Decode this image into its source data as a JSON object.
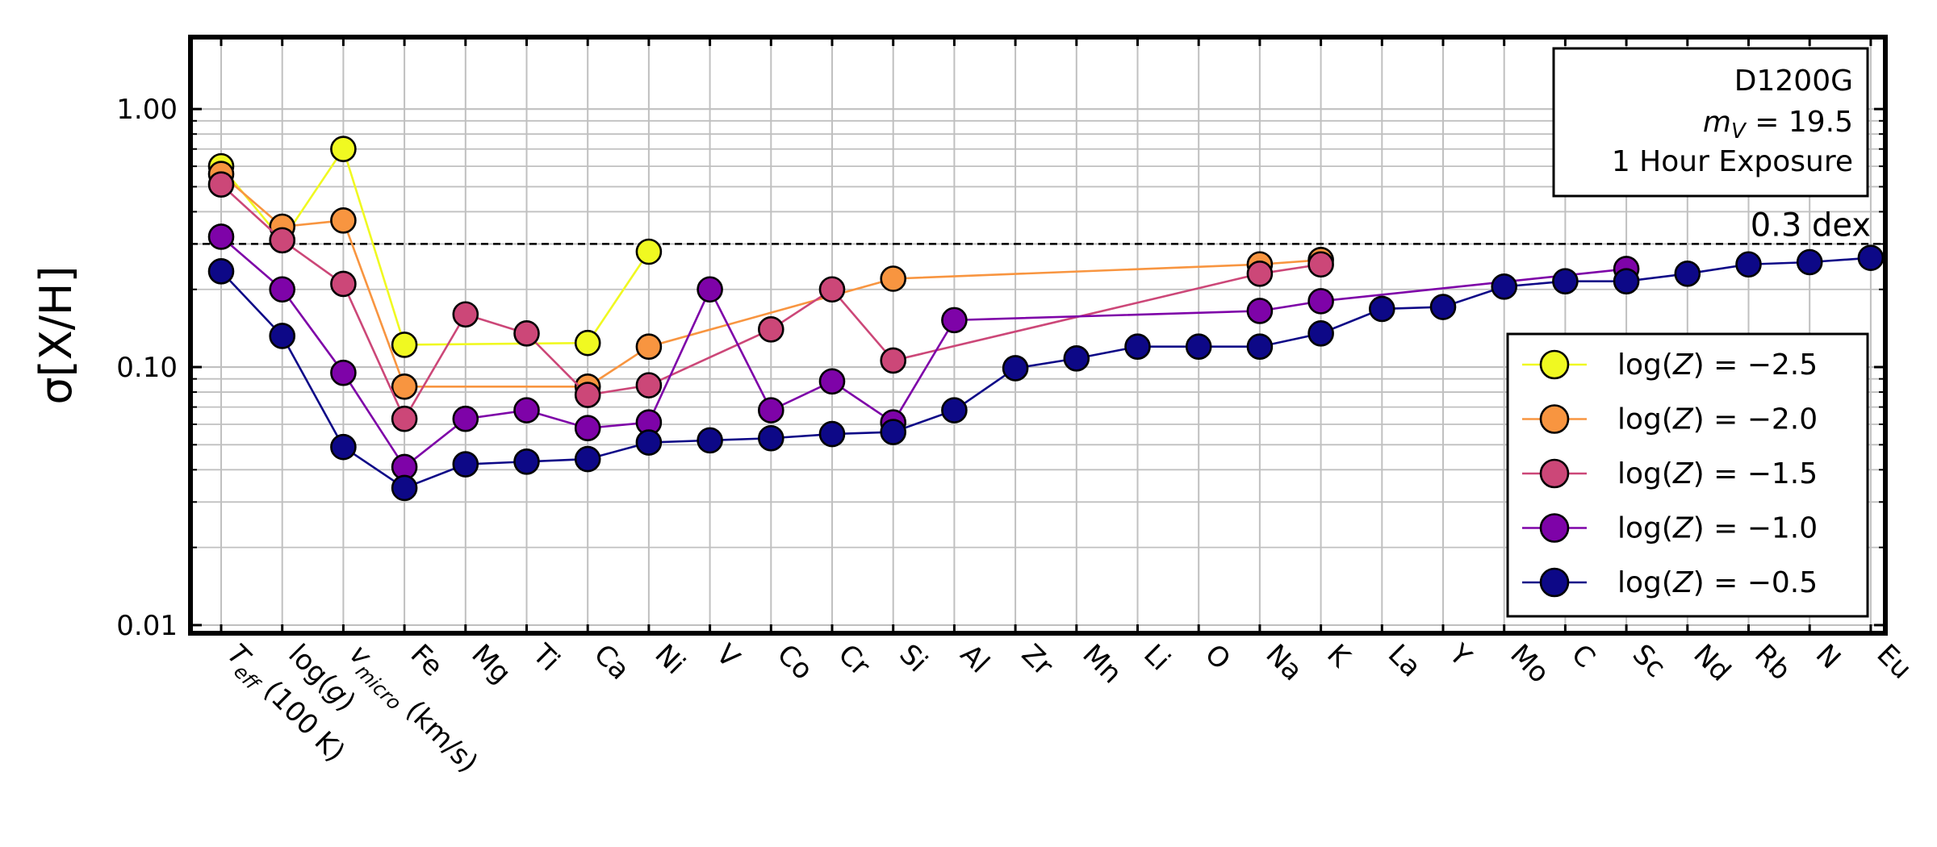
{
  "chart_data": {
    "type": "line",
    "ylabel": "σ[X/H]",
    "yscale": "log",
    "ylim": [
      0.0093,
      1.9
    ],
    "yticks": [
      {
        "value": 0.01,
        "label": "0.01"
      },
      {
        "value": 0.1,
        "label": "0.10"
      },
      {
        "value": 1.0,
        "label": "1.00"
      }
    ],
    "grid": true,
    "categories": [
      "Teff (100 K)",
      "log(g)",
      "vmicro (km/s)",
      "Fe",
      "Mg",
      "Ti",
      "Ca",
      "Ni",
      "V",
      "Co",
      "Cr",
      "Si",
      "Al",
      "Zr",
      "Mn",
      "Li",
      "O",
      "Na",
      "K",
      "La",
      "Y",
      "Mo",
      "C",
      "Sc",
      "Nd",
      "Rb",
      "N",
      "Eu"
    ],
    "category_labels": [
      {
        "main": "T",
        "sub": "eff",
        "rest": " (100 K)"
      },
      {
        "main": "log(",
        "italic": "g",
        "rest": ")"
      },
      {
        "main": "v",
        "sub": "micro",
        "rest": " (km/s)"
      },
      {
        "main": "Fe"
      },
      {
        "main": "Mg"
      },
      {
        "main": "Ti"
      },
      {
        "main": "Ca"
      },
      {
        "main": "Ni"
      },
      {
        "main": "V"
      },
      {
        "main": "Co"
      },
      {
        "main": "Cr"
      },
      {
        "main": "Si"
      },
      {
        "main": "Al"
      },
      {
        "main": "Zr"
      },
      {
        "main": "Mn"
      },
      {
        "main": "Li"
      },
      {
        "main": "O"
      },
      {
        "main": "Na"
      },
      {
        "main": "K"
      },
      {
        "main": "La"
      },
      {
        "main": "Y"
      },
      {
        "main": "Mo"
      },
      {
        "main": "C"
      },
      {
        "main": "Sc"
      },
      {
        "main": "Nd"
      },
      {
        "main": "Rb"
      },
      {
        "main": "N"
      },
      {
        "main": "Eu"
      }
    ],
    "reference_line": {
      "value": 0.3,
      "label": "0.3 dex"
    },
    "info_box": {
      "line1": "D1200G",
      "line2_symbol": "m",
      "line2_sub": "V",
      "line2_rest": " = 19.5",
      "line3": "1 Hour Exposure"
    },
    "legend_position": "lower-right",
    "series": [
      {
        "name": "log(Z) = −2.5",
        "name_parts": {
          "prefix": "log(",
          "italic": "Z",
          "suffix": ") = −2.5"
        },
        "color": "#f0f921",
        "points": [
          [
            0,
            0.6
          ],
          [
            1,
            0.31
          ],
          [
            2,
            0.7
          ],
          [
            3,
            0.122
          ],
          [
            6,
            0.124
          ],
          [
            7,
            0.28
          ]
        ]
      },
      {
        "name": "log(Z) = −2.0",
        "name_parts": {
          "prefix": "log(",
          "italic": "Z",
          "suffix": ") = −2.0"
        },
        "color": "#f89540",
        "points": [
          [
            0,
            0.56
          ],
          [
            1,
            0.35
          ],
          [
            2,
            0.37
          ],
          [
            3,
            0.084
          ],
          [
            6,
            0.084
          ],
          [
            7,
            0.12
          ],
          [
            11,
            0.22
          ],
          [
            17,
            0.25
          ],
          [
            18,
            0.26
          ]
        ]
      },
      {
        "name": "log(Z) = −1.5",
        "name_parts": {
          "prefix": "log(",
          "italic": "Z",
          "suffix": ") = −1.5"
        },
        "color": "#cc4778",
        "points": [
          [
            0,
            0.51
          ],
          [
            1,
            0.31
          ],
          [
            2,
            0.21
          ],
          [
            3,
            0.063
          ],
          [
            4,
            0.16
          ],
          [
            5,
            0.135
          ],
          [
            6,
            0.078
          ],
          [
            7,
            0.085
          ],
          [
            9,
            0.14
          ],
          [
            10,
            0.2
          ],
          [
            11,
            0.106
          ],
          [
            17,
            0.23
          ],
          [
            18,
            0.25
          ]
        ]
      },
      {
        "name": "log(Z) = −1.0",
        "name_parts": {
          "prefix": "log(",
          "italic": "Z",
          "suffix": ") = −1.0"
        },
        "color": "#7e03a8",
        "points": [
          [
            0,
            0.32
          ],
          [
            1,
            0.2
          ],
          [
            2,
            0.095
          ],
          [
            3,
            0.041
          ],
          [
            4,
            0.063
          ],
          [
            5,
            0.068
          ],
          [
            6,
            0.058
          ],
          [
            7,
            0.061
          ],
          [
            8,
            0.2
          ],
          [
            9,
            0.068
          ],
          [
            10,
            0.088
          ],
          [
            11,
            0.061
          ],
          [
            12,
            0.152
          ],
          [
            17,
            0.165
          ],
          [
            18,
            0.18
          ],
          [
            23,
            0.24
          ]
        ]
      },
      {
        "name": "log(Z) = −0.5",
        "name_parts": {
          "prefix": "log(",
          "italic": "Z",
          "suffix": ") = −0.5"
        },
        "color": "#0d0887",
        "points": [
          [
            0,
            0.235
          ],
          [
            1,
            0.132
          ],
          [
            2,
            0.049
          ],
          [
            3,
            0.034
          ],
          [
            4,
            0.042
          ],
          [
            5,
            0.043
          ],
          [
            6,
            0.044
          ],
          [
            7,
            0.051
          ],
          [
            8,
            0.052
          ],
          [
            9,
            0.053
          ],
          [
            10,
            0.055
          ],
          [
            11,
            0.056
          ],
          [
            12,
            0.068
          ],
          [
            13,
            0.099
          ],
          [
            14,
            0.108
          ],
          [
            15,
            0.12
          ],
          [
            16,
            0.12
          ],
          [
            17,
            0.12
          ],
          [
            18,
            0.135
          ],
          [
            19,
            0.168
          ],
          [
            20,
            0.171
          ],
          [
            21,
            0.205
          ],
          [
            22,
            0.215
          ],
          [
            23,
            0.215
          ],
          [
            24,
            0.23
          ],
          [
            25,
            0.25
          ],
          [
            26,
            0.255
          ],
          [
            27,
            0.265
          ]
        ]
      }
    ]
  }
}
